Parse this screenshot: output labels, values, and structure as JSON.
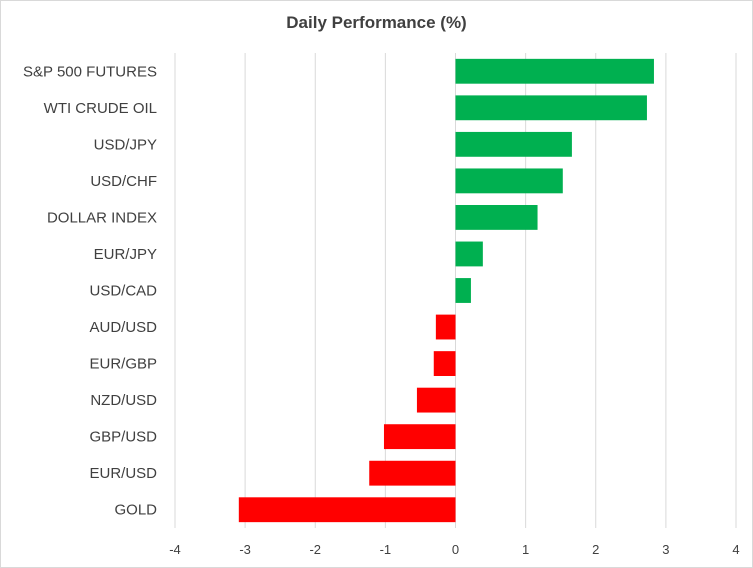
{
  "chart_data": {
    "type": "bar",
    "orientation": "horizontal",
    "title": "Daily Performance  (%)",
    "categories": [
      "S&P 500 FUTURES",
      "WTI CRUDE OIL",
      "USD/JPY",
      "USD/CHF",
      "DOLLAR INDEX",
      "EUR/JPY",
      "USD/CAD",
      "AUD/USD",
      "EUR/GBP",
      "NZD/USD",
      "GBP/USD",
      "EUR/USD",
      "GOLD"
    ],
    "values": [
      2.83,
      2.73,
      1.66,
      1.53,
      1.17,
      0.39,
      0.22,
      -0.28,
      -0.31,
      -0.55,
      -1.02,
      -1.23,
      -3.09
    ],
    "xlim": [
      -4,
      4
    ],
    "xticks": [
      "-4",
      "-3",
      "-2",
      "-1",
      "0",
      "1",
      "2",
      "3",
      "4"
    ],
    "grid": "vertical",
    "legend": "none",
    "colors": {
      "positive": "#00b050",
      "negative": "#ff0000",
      "grid": "#d9d9d9",
      "text": "#404040"
    }
  }
}
